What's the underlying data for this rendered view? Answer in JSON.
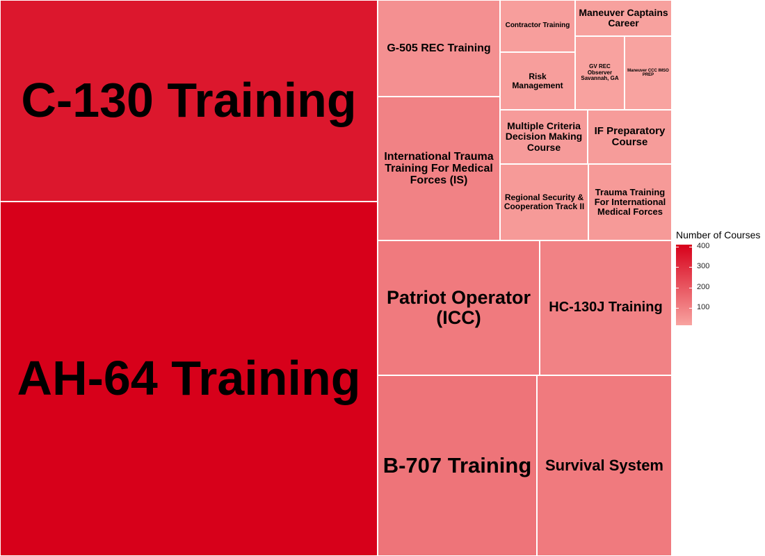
{
  "chart_data": {
    "type": "treemap",
    "title": "",
    "items": [
      {
        "name": "AH-64 Training",
        "value": 410
      },
      {
        "name": "C-130 Training",
        "value": 355
      },
      {
        "name": "B-707 Training",
        "value": 130
      },
      {
        "name": "Survival System",
        "value": 115
      },
      {
        "name": "Patriot Operator (ICC)",
        "value": 115
      },
      {
        "name": "HC-130J Training",
        "value": 95
      },
      {
        "name": "International Trauma Training For Medical Forces (IS)",
        "value": 95
      },
      {
        "name": "G-505 REC Training",
        "value": 60
      },
      {
        "name": "Regional Security & Cooperation Track II",
        "value": 38
      },
      {
        "name": "Trauma Training For International Medical Forces",
        "value": 38
      },
      {
        "name": "Multiple Criteria Decision Making Course",
        "value": 34
      },
      {
        "name": "IF Preparatory Course",
        "value": 33
      },
      {
        "name": "Risk Management",
        "value": 28
      },
      {
        "name": "Contractor Training",
        "value": 26
      },
      {
        "name": "Maneuver Captains Career",
        "value": 21
      },
      {
        "name": "GV REC Observer Savannah, GA",
        "value": 17
      },
      {
        "name": "Maneuver CCC IMSO PREP",
        "value": 15
      }
    ],
    "legend": {
      "title": "Number of Courses",
      "ticks": [
        100,
        200,
        300,
        400
      ],
      "range": [
        15,
        410
      ],
      "colors": [
        "#f8a3a0",
        "#d7001a"
      ],
      "position": "right"
    }
  }
}
